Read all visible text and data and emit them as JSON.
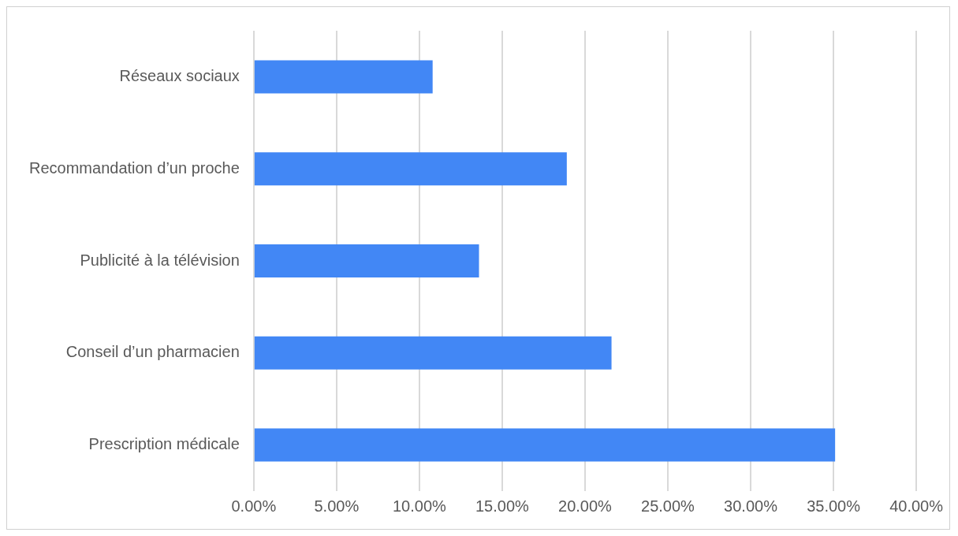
{
  "chart_data": {
    "type": "bar",
    "orientation": "horizontal",
    "categories": [
      "Réseaux sociaux",
      "Recommandation d’un proche",
      "Publicité à la télévision",
      "Conseil d’un pharmacien",
      "Prescription médicale"
    ],
    "values": [
      10.8,
      18.9,
      13.6,
      21.6,
      35.1
    ],
    "color": "#4287f5",
    "xlim": [
      0,
      40
    ],
    "xticks": [
      {
        "value": 0,
        "label": "0.00%"
      },
      {
        "value": 5,
        "label": "5.00%"
      },
      {
        "value": 10,
        "label": "10.00%"
      },
      {
        "value": 15,
        "label": "15.00%"
      },
      {
        "value": 20,
        "label": "20.00%"
      },
      {
        "value": 25,
        "label": "25.00%"
      },
      {
        "value": 30,
        "label": "30.00%"
      },
      {
        "value": 35,
        "label": "35.00%"
      },
      {
        "value": 40,
        "label": "40.00%"
      }
    ],
    "grid": "x",
    "legend": false
  }
}
